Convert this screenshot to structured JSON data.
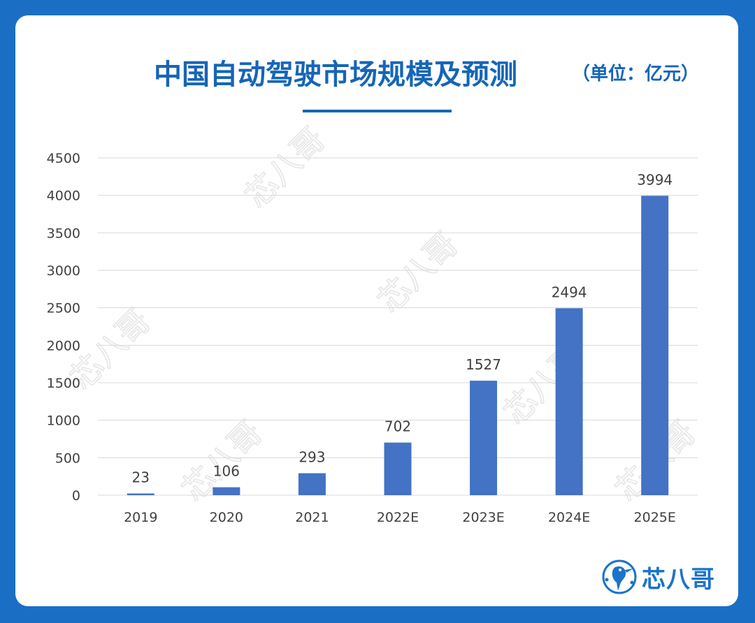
{
  "title": "中国自动驾驶市场规模及预测",
  "subtitle": "（单位：亿元）",
  "brand": {
    "name": "芯八哥",
    "icon": "kingfisher-logo-icon"
  },
  "watermark": {
    "text": "芯八哥"
  },
  "colors": {
    "background": "#1a6fc4",
    "title": "#1565b8",
    "bar": "#4472c4",
    "grid": "#d9d9d9"
  },
  "chart_data": {
    "type": "bar",
    "title": "中国自动驾驶市场规模及预测",
    "subtitle": "（单位：亿元）",
    "categories": [
      "2019",
      "2020",
      "2021",
      "2022E",
      "2023E",
      "2024E",
      "2025E"
    ],
    "values": [
      23,
      106,
      293,
      702,
      1527,
      2494,
      3994
    ],
    "ylim": [
      0,
      4500
    ],
    "yticks": [
      0,
      500,
      1000,
      1500,
      2000,
      2500,
      3000,
      3500,
      4000,
      4500
    ],
    "grid": true,
    "legend": "none",
    "data_labels": true
  }
}
